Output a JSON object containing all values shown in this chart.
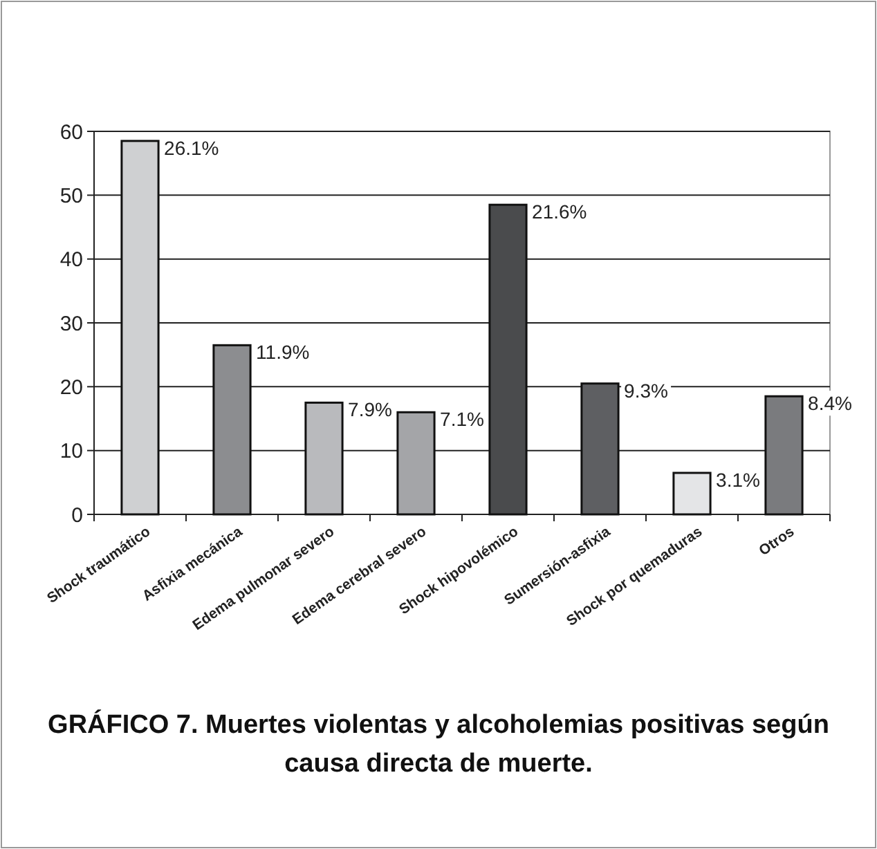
{
  "chart_data": {
    "type": "bar",
    "title": "GRÁFICO 7. Muertes violentas y alcoholemias positivas según causa directa de muerte.",
    "categories": [
      "Shock traumático",
      "Asfixia mecánica",
      "Edema pulmonar severo",
      "Edema cerebral severo",
      "Shock hipovolémico",
      "Sumersión-asfixia",
      "Shock por quemaduras",
      "Otros"
    ],
    "values": [
      58.5,
      26.5,
      17.5,
      16,
      48.5,
      20.5,
      6.5,
      18.5
    ],
    "colors": [
      "#cfd0d2",
      "#8c8d90",
      "#b9babd",
      "#a4a5a8",
      "#4a4b4d",
      "#5e5f62",
      "#e4e5e7",
      "#7a7b7e"
    ],
    "annotations": [
      {
        "text": "26.1%",
        "x": "Shock traumático",
        "y": 58.5
      },
      {
        "text": "11.9%",
        "x": "Asfixia mecánica",
        "y": 26.5
      },
      {
        "text": "7.9%",
        "x": "Edema pulmonar severo",
        "y": 17.5
      },
      {
        "text": "7.1%",
        "x": "Edema cerebral severo",
        "y": 16
      },
      {
        "text": "21.6%",
        "x": "Shock hipovolémico",
        "y": 48.5
      },
      {
        "text": "9.3%",
        "x": "Sumersión-asfixia",
        "y": 20.5
      },
      {
        "text": "3.1%",
        "x": "Shock por quemaduras",
        "y": 6.5
      },
      {
        "text": "8.4%",
        "x": "Otros",
        "y": 18.5
      }
    ],
    "ylim": [
      0,
      60
    ],
    "yticks": [
      0,
      10,
      20,
      30,
      40,
      50,
      60
    ],
    "grid": "y"
  }
}
